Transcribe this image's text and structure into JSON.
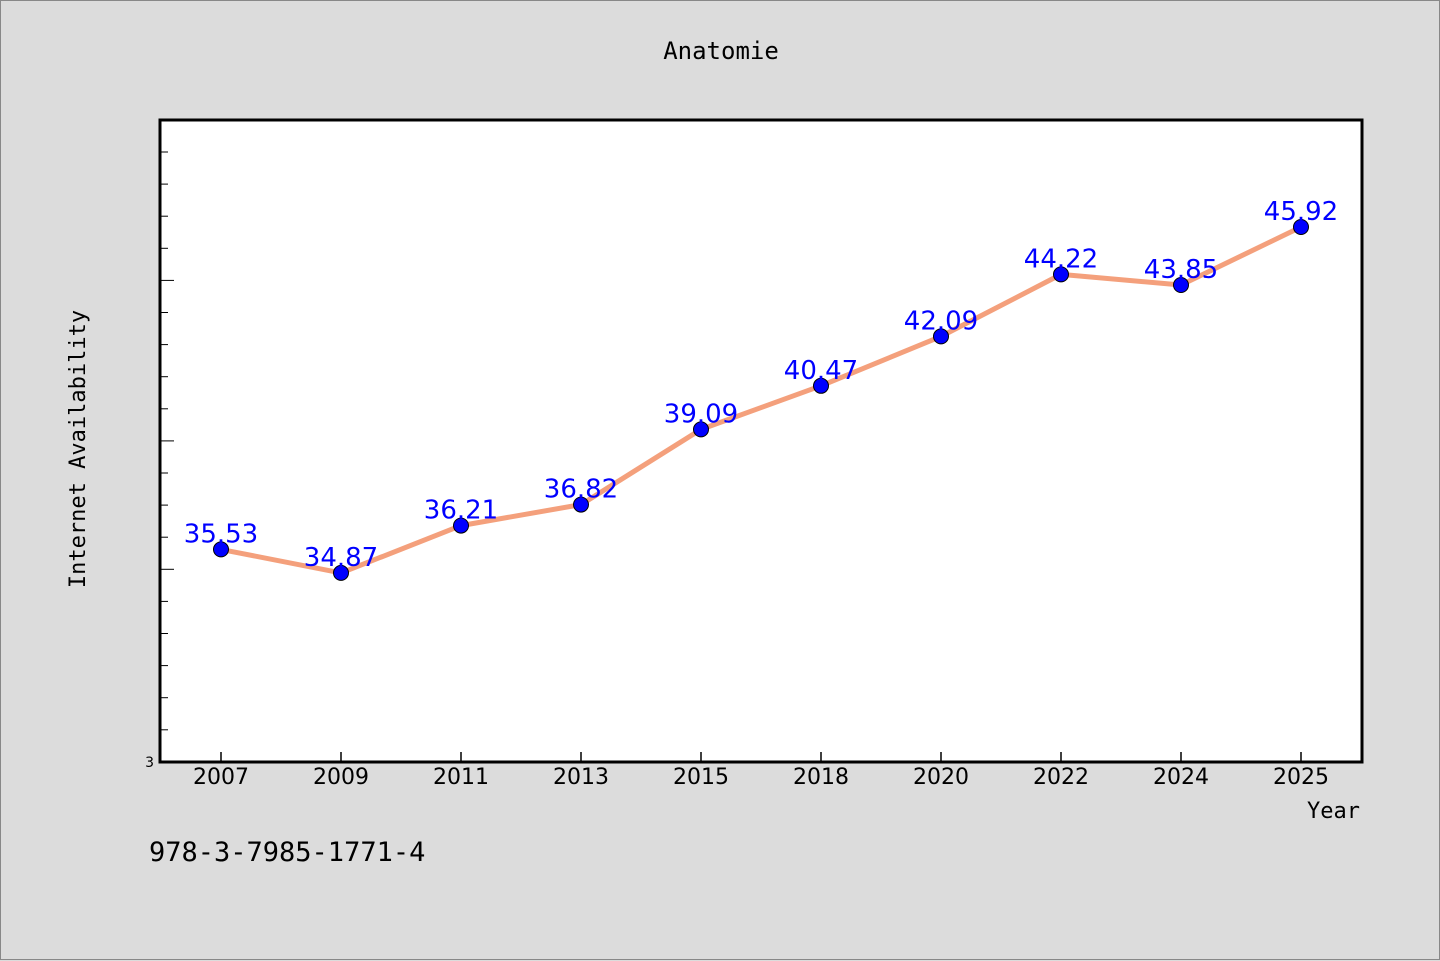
{
  "title": "Anatomie",
  "footer_code": "978-3-7985-1771-4",
  "chart_data": {
    "type": "line",
    "title": "Anatomie",
    "xlabel": "Year",
    "ylabel": "Internet Availability",
    "categories": [
      "2007",
      "2009",
      "2011",
      "2013",
      "2015",
      "2018",
      "2020",
      "2022",
      "2024",
      "2025"
    ],
    "series": [
      {
        "values": [
          35.53,
          34.87,
          36.21,
          36.82,
          39.09,
          40.47,
          42.09,
          44.22,
          43.85,
          45.92
        ],
        "labels": [
          "35.53",
          "34.87",
          "36.21",
          "36.82",
          "39.09",
          "40.47",
          "42.09",
          "44.22",
          "43.85",
          "45.92"
        ],
        "line_color": "#f4a07c",
        "marker_color": "#0000ff"
      }
    ],
    "yscale": "log",
    "ylim": [
      30,
      50
    ],
    "ytick_labels": [
      "3"
    ],
    "grid": false,
    "legend": "none",
    "colors": {
      "background": "#dcdcdc",
      "plot_background": "#ffffff",
      "label": "#0000ff"
    }
  }
}
